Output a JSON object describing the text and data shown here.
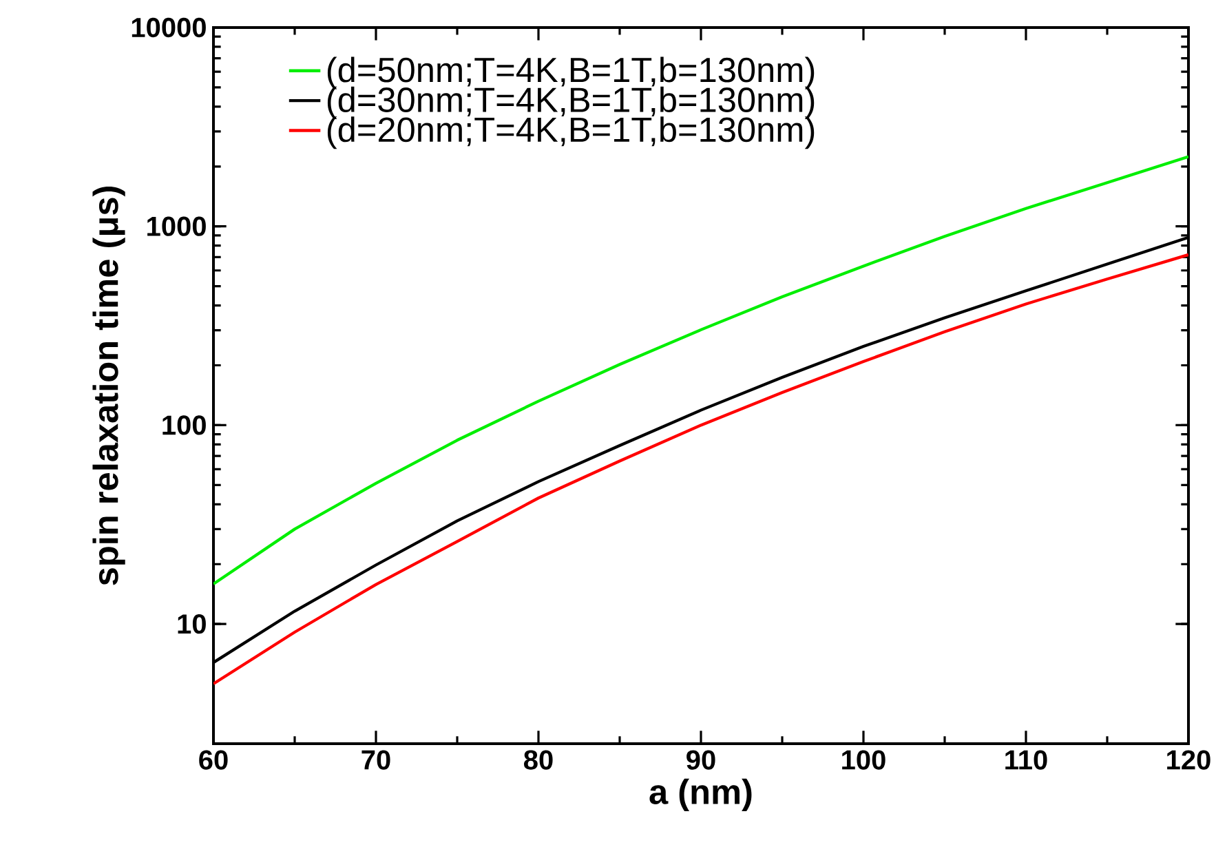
{
  "chart_data": {
    "type": "line",
    "xlabel": "a (nm)",
    "ylabel": "spin relaxation time (μs)",
    "log": "y",
    "xlim": [
      60,
      120
    ],
    "ylim": [
      2.5,
      10000
    ],
    "xticks": [
      60,
      70,
      80,
      90,
      100,
      110,
      120
    ],
    "yticks": [
      10,
      100,
      1000,
      10000
    ],
    "legend": "top left",
    "grid": false,
    "marker": "none",
    "line_style": "solid",
    "series": [
      {
        "name": "(d=50nm;T=4K,B=1T,b=130nm)",
        "color": "#00ee00",
        "x": [
          60,
          65,
          70,
          75,
          80,
          85,
          90,
          95,
          100,
          105,
          110,
          115,
          120
        ],
        "values": [
          15.9,
          30,
          51,
          84,
          132,
          202,
          302,
          442,
          631,
          891,
          1230,
          1660,
          2240
        ]
      },
      {
        "name": "(d=30nm;T=4K,B=1T,b=130nm)",
        "color": "#000000",
        "x": [
          60,
          65,
          70,
          75,
          80,
          85,
          90,
          95,
          100,
          105,
          110,
          115,
          120
        ],
        "values": [
          6.4,
          11.6,
          19.8,
          33,
          52,
          79,
          119,
          174,
          249,
          347,
          474,
          646,
          880
        ]
      },
      {
        "name": "(d=20nm;T=4K,B=1T,b=130nm)",
        "color": "#ff0000",
        "x": [
          60,
          65,
          70,
          75,
          80,
          85,
          90,
          95,
          100,
          105,
          110,
          115,
          120
        ],
        "values": [
          5.0,
          9.1,
          15.8,
          26,
          43,
          66,
          100,
          146,
          209,
          295,
          407,
          543,
          720
        ]
      }
    ]
  }
}
